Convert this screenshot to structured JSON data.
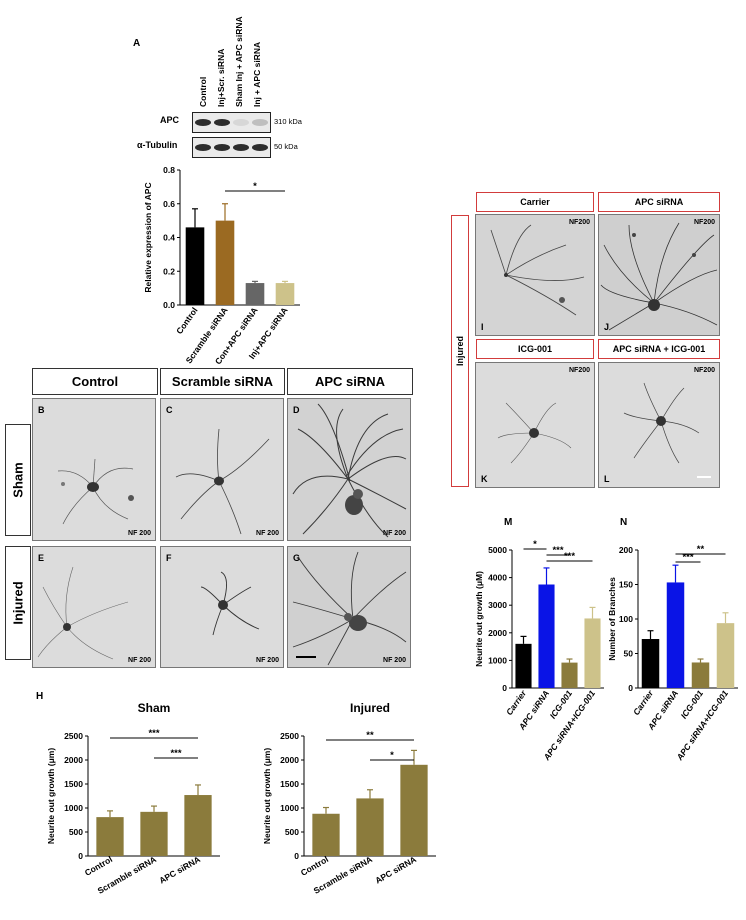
{
  "panel_A": {
    "letter": "A",
    "lane_labels": [
      "Control",
      "Inj+Scr. siRNA",
      "Sham Inj + APC siRNA",
      "Inj + APC siRNA"
    ],
    "blot_rows": [
      {
        "protein": "APC",
        "size": "310 kDa",
        "band_intensity": [
          0.95,
          0.95,
          0.1,
          0.22
        ]
      },
      {
        "protein": "α-Tubulin",
        "size": "50 kDa",
        "band_intensity": [
          0.95,
          0.95,
          0.95,
          0.95
        ]
      }
    ]
  },
  "panel_H": {
    "letter": "H"
  },
  "panel_M": {
    "letter": "M"
  },
  "panel_N": {
    "letter": "N"
  },
  "grid_left": {
    "columns": [
      "Control",
      "Scramble siRNA",
      "APC siRNA"
    ],
    "rows": [
      "Sham",
      "Injured"
    ],
    "cells": [
      {
        "letter": "B",
        "marker": "NF 200"
      },
      {
        "letter": "C",
        "marker": "NF 200"
      },
      {
        "letter": "D",
        "marker": "NF 200"
      },
      {
        "letter": "E",
        "marker": "NF 200"
      },
      {
        "letter": "F",
        "marker": "NF 200"
      },
      {
        "letter": "G",
        "marker": "NF 200"
      }
    ]
  },
  "grid_right": {
    "side_label": "Injured",
    "top_titles": [
      "Carrier",
      "APC siRNA"
    ],
    "bottom_titles": [
      "ICG-001",
      "APC siRNA + ICG-001"
    ],
    "cells": [
      {
        "letter": "I",
        "marker": "NF200"
      },
      {
        "letter": "J",
        "marker": "NF200"
      },
      {
        "letter": "K",
        "marker": "NF200"
      },
      {
        "letter": "L",
        "marker": "NF200"
      }
    ]
  },
  "chart_data": [
    {
      "id": "A",
      "type": "bar",
      "categories": [
        "Control",
        "Scramble siRNA",
        "Con+APC siRNA",
        "Inj+APC siRNA"
      ],
      "values": [
        0.46,
        0.5,
        0.13,
        0.13
      ],
      "errors": [
        0.11,
        0.1,
        0.01,
        0.01
      ],
      "colors": [
        "#000000",
        "#9b6a22",
        "#666666",
        "#cdc28a"
      ],
      "ylabel": "Relative expression of APC",
      "ylim": [
        0,
        0.8
      ],
      "yticks": [
        "0.0",
        "0.2",
        "0.4",
        "0.6",
        "0.8"
      ],
      "significance": [
        {
          "between": [
            1,
            3
          ],
          "label": "*"
        }
      ]
    },
    {
      "id": "H-sham",
      "type": "bar",
      "title": "Sham",
      "categories": [
        "Control",
        "Scramble siRNA",
        "APC siRNA"
      ],
      "values": [
        810,
        920,
        1270
      ],
      "errors": [
        130,
        120,
        210
      ],
      "colors": [
        "#8b7b3c",
        "#8b7b3c",
        "#8b7b3c"
      ],
      "ylabel": "Neurite out growth (μm)",
      "ylim": [
        0,
        2500
      ],
      "yticks": [
        "0",
        "500",
        "1000",
        "1500",
        "2000",
        "2500"
      ],
      "significance": [
        {
          "between": [
            0,
            2
          ],
          "label": "***"
        },
        {
          "between": [
            1,
            2
          ],
          "label": "***"
        }
      ]
    },
    {
      "id": "H-injured",
      "type": "bar",
      "title": "Injured",
      "categories": [
        "Control",
        "Scramble siRNA",
        "APC siRNA"
      ],
      "values": [
        880,
        1200,
        1900
      ],
      "errors": [
        130,
        180,
        300
      ],
      "colors": [
        "#8b7b3c",
        "#8b7b3c",
        "#8b7b3c"
      ],
      "ylabel": "Neurite out growth (μm)",
      "ylim": [
        0,
        2500
      ],
      "yticks": [
        "0",
        "500",
        "1000",
        "1500",
        "2000",
        "2500"
      ],
      "significance": [
        {
          "between": [
            0,
            2
          ],
          "label": "**"
        },
        {
          "between": [
            1,
            2
          ],
          "label": "*"
        }
      ]
    },
    {
      "id": "M",
      "type": "bar",
      "categories": [
        "Carrier",
        "APC siRNA",
        "ICG-001",
        "APC siRNA+ICG-001"
      ],
      "values": [
        1600,
        3750,
        920,
        2520
      ],
      "errors": [
        270,
        600,
        130,
        400
      ],
      "colors": [
        "#000000",
        "#0a14e6",
        "#8b7b3c",
        "#cdc28a"
      ],
      "ylabel": "Neurite out growth (μM)",
      "ylim": [
        0,
        5000
      ],
      "yticks": [
        "0",
        "1000",
        "2000",
        "3000",
        "4000",
        "5000"
      ],
      "significance": [
        {
          "between": [
            0,
            1
          ],
          "label": "*"
        },
        {
          "between": [
            1,
            2
          ],
          "label": "***"
        },
        {
          "between": [
            1,
            3
          ],
          "label": "***"
        }
      ]
    },
    {
      "id": "N",
      "type": "bar",
      "categories": [
        "Carrier",
        "APC siRNA",
        "ICG-001",
        "APC siRNA+ICG-001"
      ],
      "values": [
        71,
        153,
        37,
        94
      ],
      "errors": [
        12,
        25,
        5,
        15
      ],
      "colors": [
        "#000000",
        "#0a14e6",
        "#8b7b3c",
        "#cdc28a"
      ],
      "ylabel": "Number of Branches",
      "ylim": [
        0,
        200
      ],
      "yticks": [
        "0",
        "50",
        "100",
        "150",
        "200"
      ],
      "significance": [
        {
          "between": [
            1,
            2
          ],
          "label": "***"
        },
        {
          "between": [
            1,
            3
          ],
          "label": "**"
        }
      ]
    }
  ]
}
